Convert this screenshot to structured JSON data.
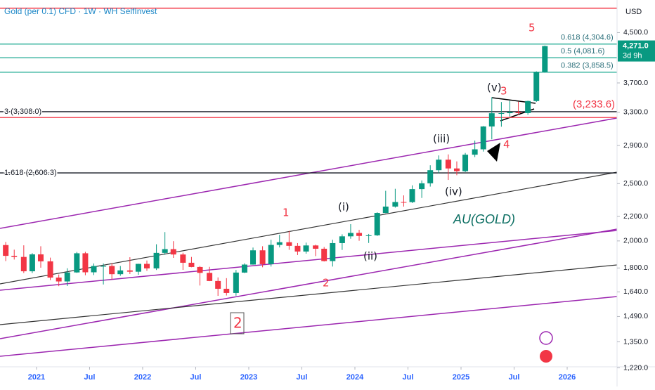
{
  "chart_data": {
    "type": "candlestick",
    "title": "Gold (per 0.1) CFD · 1W · WH SelfInvest",
    "currency": "USD",
    "last_price": {
      "value": 4271.0,
      "label": "4,271.0"
    },
    "countdown": "3d 9h",
    "log_scale": true,
    "up_color": "#089981",
    "down_color": "#f23645",
    "xlim": [
      2020.656,
      2026.47
    ],
    "xticks": [
      {
        "value": 2021,
        "label": "2021"
      },
      {
        "value": 2021.5,
        "label": "Jul"
      },
      {
        "value": 2022,
        "label": "2022"
      },
      {
        "value": 2022.5,
        "label": "Jul"
      },
      {
        "value": 2023,
        "label": "2023"
      },
      {
        "value": 2023.5,
        "label": "Jul"
      },
      {
        "value": 2024,
        "label": "2024"
      },
      {
        "value": 2024.5,
        "label": "Jul"
      },
      {
        "value": 2025,
        "label": "2025"
      },
      {
        "value": 2025.5,
        "label": "Jul"
      },
      {
        "value": 2026,
        "label": "2026"
      }
    ],
    "ylim": [
      1225,
      5110
    ],
    "yticks": [
      {
        "value": 4500,
        "label": "4,500.0"
      },
      {
        "value": 3700,
        "label": "3,700.0"
      },
      {
        "value": 3300,
        "label": "3,300.0"
      },
      {
        "value": 2900,
        "label": "2,900.0"
      },
      {
        "value": 2500,
        "label": "2,500.0"
      },
      {
        "value": 2200,
        "label": "2,200.0"
      },
      {
        "value": 2000,
        "label": "2,000.0"
      },
      {
        "value": 1800,
        "label": "1,800.0"
      },
      {
        "value": 1640,
        "label": "1,640.0"
      },
      {
        "value": 1490,
        "label": "1,490.0"
      },
      {
        "value": 1350,
        "label": "1,350.0"
      },
      {
        "value": 1220,
        "label": "1,220.0"
      }
    ],
    "levels": [
      {
        "value": 4304.6,
        "label": "0.618 (4,304.6)",
        "color": "#22ab94"
      },
      {
        "value": 4081.6,
        "label": "0.5 (4,081.6)",
        "color": "#22ab94"
      },
      {
        "value": 3858.5,
        "label": "0.382 (3,858.5)",
        "color": "#22ab94"
      },
      {
        "value": 3308.0,
        "label": "3 (3,308.0)",
        "color": "#131722"
      },
      {
        "value": 2606.3,
        "label": "1.618 (2,606.3)",
        "color": "#131722"
      },
      {
        "value": 3233.6,
        "label": "(3,233.6)",
        "color": "#f23645"
      }
    ],
    "lines": [
      {
        "value": 4950,
        "color": "#f23645"
      }
    ],
    "annotations": [
      "5",
      "3",
      "4",
      "1",
      "2",
      "2",
      "(v)",
      "(iii)",
      "(iv)",
      "(i)",
      "(ii)",
      "AU(GOLD)"
    ],
    "x": [
      2020.71,
      2020.79,
      2020.88,
      2020.96,
      2021.04,
      2021.13,
      2021.21,
      2021.29,
      2021.38,
      2021.46,
      2021.54,
      2021.63,
      2021.71,
      2021.79,
      2021.88,
      2021.96,
      2022.04,
      2022.13,
      2022.21,
      2022.29,
      2022.38,
      2022.46,
      2022.54,
      2022.63,
      2022.71,
      2022.79,
      2022.88,
      2022.96,
      2023.04,
      2023.13,
      2023.21,
      2023.29,
      2023.38,
      2023.46,
      2023.54,
      2023.63,
      2023.71,
      2023.79,
      2023.88,
      2023.96,
      2024.04,
      2024.13,
      2024.21,
      2024.29,
      2024.38,
      2024.46,
      2024.54,
      2024.63,
      2024.71,
      2024.79,
      2024.88,
      2024.96,
      2025.04,
      2025.13,
      2025.21,
      2025.29,
      2025.38,
      2025.46,
      2025.54,
      2025.63,
      2025.71,
      2025.79
    ],
    "ohlc": [
      [
        1968,
        1992,
        1849,
        1887
      ],
      [
        1887,
        1933,
        1860,
        1879
      ],
      [
        1879,
        1966,
        1765,
        1777
      ],
      [
        1777,
        1907,
        1765,
        1898
      ],
      [
        1898,
        1959,
        1802,
        1847
      ],
      [
        1847,
        1874,
        1717,
        1734
      ],
      [
        1734,
        1755,
        1677,
        1708
      ],
      [
        1708,
        1798,
        1678,
        1769
      ],
      [
        1769,
        1916,
        1766,
        1906
      ],
      [
        1906,
        1917,
        1750,
        1770
      ],
      [
        1770,
        1832,
        1751,
        1814
      ],
      [
        1814,
        1832,
        1688,
        1814
      ],
      [
        1814,
        1834,
        1721,
        1757
      ],
      [
        1757,
        1814,
        1746,
        1783
      ],
      [
        1783,
        1877,
        1758,
        1774
      ],
      [
        1774,
        1830,
        1753,
        1829
      ],
      [
        1829,
        1853,
        1780,
        1797
      ],
      [
        1797,
        1974,
        1786,
        1909
      ],
      [
        1909,
        2070,
        1895,
        1937
      ],
      [
        1937,
        1998,
        1872,
        1897
      ],
      [
        1897,
        1910,
        1787,
        1837
      ],
      [
        1837,
        1879,
        1805,
        1807
      ],
      [
        1807,
        1814,
        1681,
        1766
      ],
      [
        1766,
        1808,
        1710,
        1711
      ],
      [
        1711,
        1735,
        1615,
        1660
      ],
      [
        1660,
        1730,
        1617,
        1633
      ],
      [
        1633,
        1786,
        1616,
        1768
      ],
      [
        1768,
        1833,
        1765,
        1824
      ],
      [
        1824,
        1949,
        1823,
        1928
      ],
      [
        1928,
        1959,
        1805,
        1827
      ],
      [
        1827,
        2009,
        1810,
        1969
      ],
      [
        1969,
        2048,
        1950,
        1990
      ],
      [
        1990,
        2079,
        1932,
        1962
      ],
      [
        1962,
        1983,
        1893,
        1919
      ],
      [
        1919,
        1987,
        1903,
        1965
      ],
      [
        1965,
        1971,
        1885,
        1940
      ],
      [
        1940,
        1953,
        1846,
        1849
      ],
      [
        1849,
        2009,
        1810,
        1983
      ],
      [
        1983,
        2052,
        1931,
        2036
      ],
      [
        2036,
        2135,
        2017,
        2063
      ],
      [
        2063,
        2088,
        2001,
        2039
      ],
      [
        2039,
        2055,
        1984,
        2044
      ],
      [
        2044,
        2236,
        2039,
        2230
      ],
      [
        2230,
        2431,
        2228,
        2286
      ],
      [
        2286,
        2450,
        2277,
        2327
      ],
      [
        2327,
        2388,
        2286,
        2326
      ],
      [
        2326,
        2483,
        2318,
        2447
      ],
      [
        2447,
        2531,
        2364,
        2503
      ],
      [
        2503,
        2685,
        2471,
        2634
      ],
      [
        2634,
        2790,
        2604,
        2744
      ],
      [
        2744,
        2801,
        2536,
        2652
      ],
      [
        2652,
        2726,
        2583,
        2624
      ],
      [
        2624,
        2817,
        2614,
        2798
      ],
      [
        2798,
        2956,
        2772,
        2857
      ],
      [
        2857,
        3128,
        2832,
        3123
      ],
      [
        3123,
        3500,
        2970,
        3288
      ],
      [
        3288,
        3435,
        3120,
        3289
      ],
      [
        3289,
        3452,
        3246,
        3303
      ],
      [
        3303,
        3439,
        3268,
        3290
      ],
      [
        3290,
        3453,
        3268,
        3448
      ],
      [
        3448,
        3871,
        3436,
        3858
      ],
      [
        3858,
        4280,
        3850,
        4271
      ]
    ]
  }
}
